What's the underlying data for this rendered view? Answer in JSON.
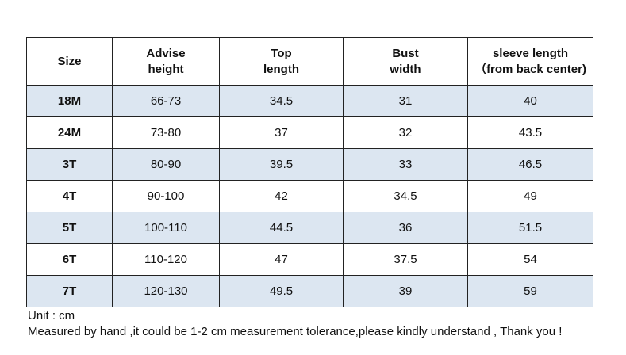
{
  "table": {
    "header": [
      [
        "Size"
      ],
      [
        "Advise",
        "height"
      ],
      [
        "Top",
        "length"
      ],
      [
        "Bust",
        "width"
      ],
      [
        "sleeve length",
        "（from back center)"
      ]
    ],
    "rows": [
      [
        "18M",
        "66-73",
        "34.5",
        "31",
        "40"
      ],
      [
        "24M",
        "73-80",
        "37",
        "32",
        "43.5"
      ],
      [
        "3T",
        "80-90",
        "39.5",
        "33",
        "46.5"
      ],
      [
        "4T",
        "90-100",
        "42",
        "34.5",
        "49"
      ],
      [
        "5T",
        "100-110",
        "44.5",
        "36",
        "51.5"
      ],
      [
        "6T",
        "110-120",
        "47",
        "37.5",
        "54"
      ],
      [
        "7T",
        "120-130",
        "49.5",
        "39",
        "59"
      ]
    ]
  },
  "notes": [
    "Unit : cm",
    "Measured by hand ,it could be 1-2 cm measurement tolerance,please kindly understand , Thank you !"
  ]
}
